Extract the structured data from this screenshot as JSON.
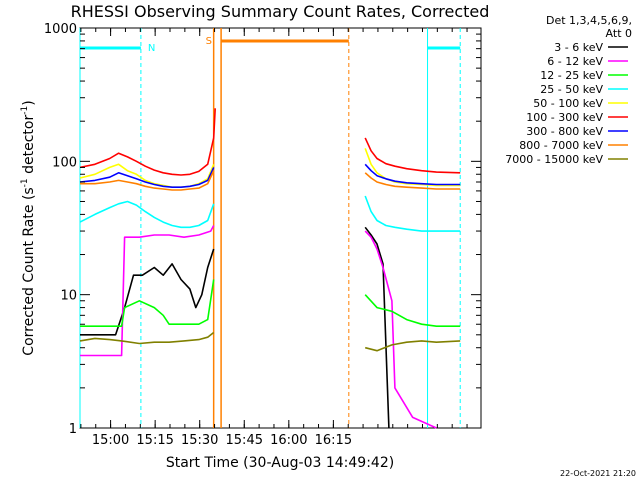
{
  "chart_data": {
    "type": "line",
    "title": "RHESSI Observing Summary Count Rates, Corrected",
    "xlabel": "Start Time (30-Aug-03 14:49:42)",
    "ylabel": "Corrected Count Rate (s",
    "ylabel_sup1": "-1",
    "ylabel_mid": " detector",
    "ylabel_sup2": "-1",
    "ylabel_end": ")",
    "yscale": "log",
    "ylim": [
      1,
      1000
    ],
    "xlim_min": [
      0,
      135
    ],
    "xticks": [
      {
        "label": "15:00",
        "t": 10.3
      },
      {
        "label": "15:15",
        "t": 25.3
      },
      {
        "label": "15:30",
        "t": 40.3
      },
      {
        "label": "15:45",
        "t": 55.3
      },
      {
        "label": "16:00",
        "t": 70.3
      },
      {
        "label": "16:15",
        "t": 85.3
      }
    ],
    "yticks": [
      {
        "label": "1000",
        "v": 1000
      },
      {
        "label": "100",
        "v": 100
      },
      {
        "label": "10",
        "v": 10
      },
      {
        "label": "1",
        "v": 1
      }
    ],
    "legend_header": [
      "Det 1,3,4,5,6,9,",
      "Att 0"
    ],
    "series": [
      {
        "name": "3 - 6 keV",
        "color": "#000000",
        "segments": [
          [
            [
              0,
              5
            ],
            [
              12,
              5
            ],
            [
              15,
              8
            ],
            [
              18,
              14
            ],
            [
              21,
              14
            ],
            [
              25,
              16
            ],
            [
              28,
              14
            ],
            [
              31,
              17
            ],
            [
              34,
              13
            ],
            [
              37,
              11
            ],
            [
              39,
              8
            ],
            [
              41,
              10
            ],
            [
              43,
              16
            ],
            [
              45,
              22
            ]
          ],
          [
            [
              96,
              32
            ],
            [
              98,
              28
            ],
            [
              100,
              24
            ],
            [
              102,
              17
            ],
            [
              104,
              1
            ]
          ]
        ]
      },
      {
        "name": "6 - 12 keV",
        "color": "#ff00ff",
        "segments": [
          [
            [
              0,
              3.5
            ],
            [
              14,
              3.5
            ],
            [
              15,
              27
            ],
            [
              20,
              27
            ],
            [
              25,
              28
            ],
            [
              30,
              28
            ],
            [
              35,
              27
            ],
            [
              40,
              28
            ],
            [
              44,
              30
            ],
            [
              45,
              33
            ]
          ],
          [
            [
              96,
              30
            ],
            [
              98,
              27
            ],
            [
              100,
              22
            ],
            [
              102,
              16
            ],
            [
              105,
              9
            ],
            [
              106,
              2
            ],
            [
              112,
              1.2
            ],
            [
              120,
              1
            ]
          ]
        ]
      },
      {
        "name": "12 - 25 keV",
        "color": "#00ff00",
        "segments": [
          [
            [
              0,
              5.8
            ],
            [
              14,
              5.8
            ],
            [
              15,
              8
            ],
            [
              20,
              9
            ],
            [
              25,
              8
            ],
            [
              28,
              7
            ],
            [
              30,
              6
            ],
            [
              35,
              6
            ],
            [
              40,
              6
            ],
            [
              43,
              6.5
            ],
            [
              45,
              13
            ]
          ],
          [
            [
              96,
              10
            ],
            [
              100,
              8
            ],
            [
              105,
              7.5
            ],
            [
              110,
              6.5
            ],
            [
              115,
              6
            ],
            [
              120,
              5.8
            ],
            [
              128,
              5.8
            ]
          ]
        ]
      },
      {
        "name": "25 - 50 keV",
        "color": "#00ffff",
        "segments": [
          [
            [
              0,
              35
            ],
            [
              5,
              40
            ],
            [
              10,
              45
            ],
            [
              13,
              48
            ],
            [
              16,
              50
            ],
            [
              19,
              47
            ],
            [
              22,
              42
            ],
            [
              25,
              38
            ],
            [
              28,
              35
            ],
            [
              31,
              33
            ],
            [
              34,
              32
            ],
            [
              37,
              32
            ],
            [
              40,
              33
            ],
            [
              43,
              36
            ],
            [
              45,
              48
            ]
          ],
          [
            [
              96,
              55
            ],
            [
              98,
              42
            ],
            [
              100,
              36
            ],
            [
              103,
              33
            ],
            [
              106,
              32
            ],
            [
              110,
              31
            ],
            [
              115,
              30
            ],
            [
              120,
              30
            ],
            [
              128,
              30
            ]
          ]
        ]
      },
      {
        "name": "50 - 100 keV",
        "color": "#ffff00",
        "segments": [
          [
            [
              0,
              75
            ],
            [
              5,
              80
            ],
            [
              10,
              90
            ],
            [
              13,
              95
            ],
            [
              16,
              85
            ],
            [
              19,
              80
            ],
            [
              22,
              72
            ],
            [
              25,
              68
            ],
            [
              28,
              66
            ],
            [
              31,
              64
            ],
            [
              34,
              64
            ],
            [
              37,
              65
            ],
            [
              40,
              68
            ],
            [
              43,
              74
            ],
            [
              45,
              95
            ]
          ],
          [
            [
              96,
              125
            ],
            [
              98,
              95
            ],
            [
              100,
              82
            ],
            [
              103,
              74
            ],
            [
              106,
              70
            ],
            [
              110,
              68
            ],
            [
              115,
              67
            ],
            [
              120,
              66
            ],
            [
              128,
              66
            ]
          ]
        ]
      },
      {
        "name": "100 - 300 keV",
        "color": "#ff0000",
        "segments": [
          [
            [
              0,
              90
            ],
            [
              5,
              95
            ],
            [
              10,
              105
            ],
            [
              13,
              115
            ],
            [
              16,
              108
            ],
            [
              19,
              100
            ],
            [
              22,
              92
            ],
            [
              25,
              86
            ],
            [
              28,
              82
            ],
            [
              31,
              80
            ],
            [
              34,
              79
            ],
            [
              37,
              80
            ],
            [
              40,
              84
            ],
            [
              43,
              95
            ],
            [
              45,
              150
            ],
            [
              45.5,
              250
            ]
          ],
          [
            [
              96,
              150
            ],
            [
              98,
              120
            ],
            [
              100,
              105
            ],
            [
              103,
              96
            ],
            [
              106,
              92
            ],
            [
              110,
              88
            ],
            [
              115,
              85
            ],
            [
              120,
              83
            ],
            [
              128,
              82
            ]
          ]
        ]
      },
      {
        "name": "300 - 800 keV",
        "color": "#0000ff",
        "segments": [
          [
            [
              0,
              70
            ],
            [
              5,
              72
            ],
            [
              10,
              76
            ],
            [
              13,
              82
            ],
            [
              16,
              78
            ],
            [
              19,
              74
            ],
            [
              22,
              70
            ],
            [
              25,
              67
            ],
            [
              28,
              65
            ],
            [
              31,
              64
            ],
            [
              34,
              64
            ],
            [
              37,
              65
            ],
            [
              40,
              67
            ],
            [
              43,
              72
            ],
            [
              45,
              90
            ]
          ],
          [
            [
              96,
              95
            ],
            [
              98,
              85
            ],
            [
              100,
              78
            ],
            [
              103,
              74
            ],
            [
              106,
              71
            ],
            [
              110,
              69
            ],
            [
              115,
              68
            ],
            [
              120,
              67
            ],
            [
              128,
              67
            ]
          ]
        ]
      },
      {
        "name": "800 - 7000 keV",
        "color": "#ff8000",
        "segments": [
          [
            [
              0,
              68
            ],
            [
              5,
              68
            ],
            [
              10,
              70
            ],
            [
              13,
              72
            ],
            [
              16,
              70
            ],
            [
              19,
              68
            ],
            [
              22,
              65
            ],
            [
              25,
              63
            ],
            [
              28,
              62
            ],
            [
              31,
              61
            ],
            [
              34,
              61
            ],
            [
              37,
              62
            ],
            [
              40,
              63
            ],
            [
              43,
              68
            ],
            [
              45,
              85
            ]
          ],
          [
            [
              96,
              82
            ],
            [
              98,
              75
            ],
            [
              100,
              70
            ],
            [
              103,
              67
            ],
            [
              106,
              65
            ],
            [
              110,
              64
            ],
            [
              115,
              63
            ],
            [
              120,
              62
            ],
            [
              128,
              62
            ]
          ]
        ]
      },
      {
        "name": "7000 - 15000 keV",
        "color": "#808000",
        "segments": [
          [
            [
              0,
              4.5
            ],
            [
              5,
              4.7
            ],
            [
              10,
              4.6
            ],
            [
              14,
              4.5
            ],
            [
              20,
              4.3
            ],
            [
              25,
              4.4
            ],
            [
              30,
              4.4
            ],
            [
              35,
              4.5
            ],
            [
              40,
              4.6
            ],
            [
              43,
              4.8
            ],
            [
              45,
              5.2
            ]
          ],
          [
            [
              96,
              4
            ],
            [
              100,
              3.8
            ],
            [
              105,
              4.2
            ],
            [
              110,
              4.4
            ],
            [
              115,
              4.5
            ],
            [
              120,
              4.4
            ],
            [
              128,
              4.5
            ]
          ]
        ]
      }
    ],
    "markers": {
      "night_bar": {
        "label": "N",
        "color": "#00ffff",
        "t0": 0,
        "t1": 20.5,
        "t2": 117,
        "t3": 128
      },
      "saa_bar": {
        "label": "S",
        "color": "#ff8000",
        "t0": 45,
        "t1": 90.5
      },
      "cyan_solid_lines": [
        0,
        117
      ],
      "cyan_dashed_lines": [
        20.5,
        128
      ],
      "orange_solid_lines": [
        45,
        47.5
      ],
      "orange_dashed_lines": [
        90.5
      ]
    }
  },
  "footer": {
    "timestamp": "22-Oct-2021 21:20"
  }
}
